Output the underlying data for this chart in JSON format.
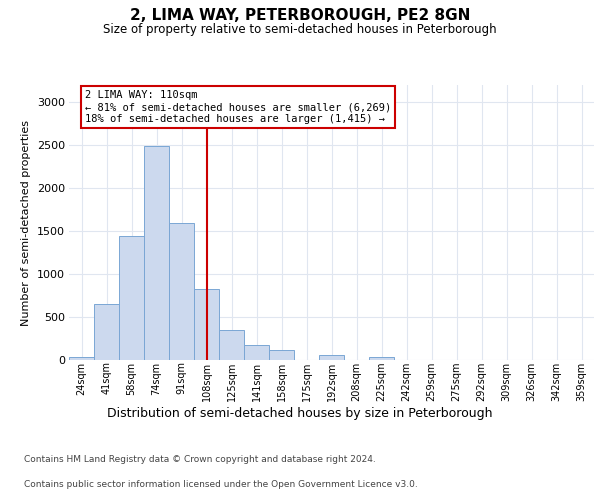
{
  "title": "2, LIMA WAY, PETERBOROUGH, PE2 8GN",
  "subtitle": "Size of property relative to semi-detached houses in Peterborough",
  "xlabel": "Distribution of semi-detached houses by size in Peterborough",
  "ylabel": "Number of semi-detached properties",
  "property_label": "2 LIMA WAY: 110sqm",
  "pct_smaller": 81,
  "count_smaller": 6269,
  "pct_larger": 18,
  "count_larger": 1415,
  "bar_color": "#ccd9ee",
  "bar_edge_color": "#7aa6d4",
  "annotation_box_color": "#ffffff",
  "annotation_box_edge": "#cc0000",
  "vline_color": "#cc0000",
  "categories": [
    "24sqm",
    "41sqm",
    "58sqm",
    "74sqm",
    "91sqm",
    "108sqm",
    "125sqm",
    "141sqm",
    "158sqm",
    "175sqm",
    "192sqm",
    "208sqm",
    "225sqm",
    "242sqm",
    "259sqm",
    "275sqm",
    "292sqm",
    "309sqm",
    "326sqm",
    "342sqm",
    "359sqm"
  ],
  "values": [
    40,
    655,
    1445,
    2495,
    1595,
    825,
    345,
    175,
    120,
    0,
    55,
    0,
    30,
    0,
    0,
    0,
    0,
    0,
    0,
    0,
    0
  ],
  "ylim": [
    0,
    3200
  ],
  "yticks": [
    0,
    500,
    1000,
    1500,
    2000,
    2500,
    3000
  ],
  "footnote1": "Contains HM Land Registry data © Crown copyright and database right 2024.",
  "footnote2": "Contains public sector information licensed under the Open Government Licence v3.0.",
  "background_color": "#ffffff",
  "plot_background": "#ffffff",
  "grid_color": "#e0e6f0"
}
